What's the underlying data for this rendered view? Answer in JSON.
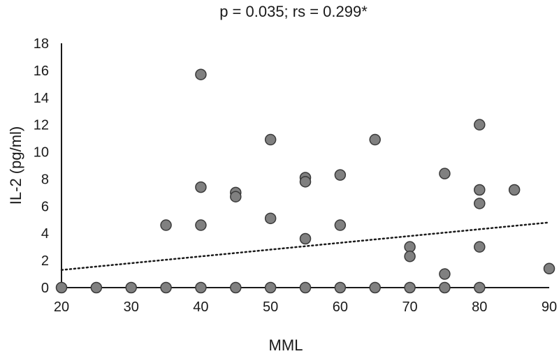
{
  "chart_data": {
    "type": "scatter",
    "title": "p = 0.035; rs = 0.299*",
    "xlabel": "MML",
    "ylabel": "IL-2 (pg/ml)",
    "xlim": [
      20,
      90
    ],
    "ylim": [
      0,
      18
    ],
    "xticks": [
      20,
      30,
      40,
      50,
      60,
      70,
      80,
      90
    ],
    "yticks": [
      0,
      2,
      4,
      6,
      8,
      10,
      12,
      14,
      16,
      18
    ],
    "grid": false,
    "legend": "none",
    "colors": {
      "marker_fill": "#808080",
      "marker_stroke": "#3a3a3a",
      "axis": "#1a1a1a",
      "trendline": "#1a1a1a"
    },
    "trendline": {
      "style": "dotted",
      "x": [
        20,
        90
      ],
      "y": [
        1.3,
        4.8
      ]
    },
    "series": [
      {
        "name": "IL-2",
        "points": [
          {
            "x": 20,
            "y": 0
          },
          {
            "x": 25,
            "y": 0
          },
          {
            "x": 30,
            "y": 0
          },
          {
            "x": 35,
            "y": 0
          },
          {
            "x": 40,
            "y": 0
          },
          {
            "x": 45,
            "y": 0
          },
          {
            "x": 50,
            "y": 0
          },
          {
            "x": 55,
            "y": 0
          },
          {
            "x": 60,
            "y": 0
          },
          {
            "x": 65,
            "y": 0
          },
          {
            "x": 70,
            "y": 0
          },
          {
            "x": 75,
            "y": 0
          },
          {
            "x": 80,
            "y": 0
          },
          {
            "x": 35,
            "y": 4.6
          },
          {
            "x": 40,
            "y": 15.7
          },
          {
            "x": 40,
            "y": 7.4
          },
          {
            "x": 40,
            "y": 4.6
          },
          {
            "x": 45,
            "y": 7.0
          },
          {
            "x": 45,
            "y": 6.7
          },
          {
            "x": 50,
            "y": 10.9
          },
          {
            "x": 50,
            "y": 5.1
          },
          {
            "x": 55,
            "y": 8.1
          },
          {
            "x": 55,
            "y": 7.8
          },
          {
            "x": 55,
            "y": 3.6
          },
          {
            "x": 60,
            "y": 8.3
          },
          {
            "x": 60,
            "y": 4.6
          },
          {
            "x": 65,
            "y": 10.9
          },
          {
            "x": 70,
            "y": 3.0
          },
          {
            "x": 70,
            "y": 2.3
          },
          {
            "x": 75,
            "y": 8.4
          },
          {
            "x": 75,
            "y": 1.0
          },
          {
            "x": 80,
            "y": 12.0
          },
          {
            "x": 80,
            "y": 7.2
          },
          {
            "x": 80,
            "y": 6.2
          },
          {
            "x": 80,
            "y": 3.0
          },
          {
            "x": 85,
            "y": 7.2
          },
          {
            "x": 90,
            "y": 1.4
          }
        ]
      }
    ]
  }
}
